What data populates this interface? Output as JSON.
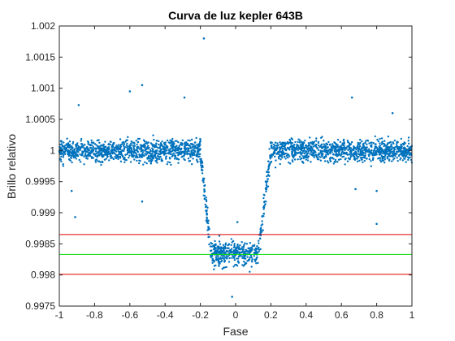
{
  "chart_data": {
    "type": "scatter",
    "title": "Curva de luz kepler 643B",
    "xlabel": "Fase",
    "ylabel": "Brillo relativo",
    "xlim": [
      -1,
      1
    ],
    "ylim": [
      0.9975,
      1.002
    ],
    "x_ticks": [
      -1,
      -0.8,
      -0.6,
      -0.4,
      -0.2,
      0,
      0.2,
      0.4,
      0.6,
      0.8,
      1
    ],
    "x_tick_labels": [
      "-1",
      "-0.8",
      "-0.6",
      "-0.4",
      "-0.2",
      "0",
      "0.2",
      "0.4",
      "0.6",
      "0.8",
      "1"
    ],
    "y_ticks": [
      0.9975,
      0.998,
      0.9985,
      0.999,
      0.9995,
      1,
      1.0005,
      1.001,
      1.0015,
      1.002
    ],
    "y_tick_labels": [
      "0.9975",
      "0.998",
      "0.9985",
      "0.999",
      "0.9995",
      "1",
      "1.0005",
      "1.001",
      "1.0015",
      "1.002"
    ],
    "grid": false,
    "box": true,
    "marker_color": "#0072BD",
    "series": [
      {
        "kind": "scatter",
        "transit_shape": {
          "baseline": 1.0,
          "baseline_scatter": 0.00022,
          "ingress_start": -0.2,
          "ingress_end": -0.14,
          "egress_start": 0.13,
          "egress_end": 0.2,
          "depth_level": 0.99835,
          "bottom_scatter": 0.00025
        },
        "outliers": [
          {
            "x": -0.18,
            "y": 1.0018
          },
          {
            "x": -0.53,
            "y": 1.00105
          },
          {
            "x": -0.6,
            "y": 1.00095
          },
          {
            "x": -0.29,
            "y": 1.00085
          },
          {
            "x": -0.89,
            "y": 1.00073
          },
          {
            "x": 0.66,
            "y": 1.00085
          },
          {
            "x": 0.89,
            "y": 1.0006
          },
          {
            "x": -0.91,
            "y": 0.99893
          },
          {
            "x": -0.93,
            "y": 0.99935
          },
          {
            "x": -0.53,
            "y": 0.99918
          },
          {
            "x": 0.8,
            "y": 0.99882
          },
          {
            "x": 0.8,
            "y": 0.99935
          },
          {
            "x": 0.01,
            "y": 0.99885
          },
          {
            "x": -0.02,
            "y": 0.99765
          },
          {
            "x": 0.68,
            "y": 0.99938
          }
        ]
      }
    ],
    "horizontal_lines": [
      {
        "y": 0.99865,
        "color": "#e00000"
      },
      {
        "y": 0.99833,
        "color": "#00dd00"
      },
      {
        "y": 0.99801,
        "color": "#e00000"
      }
    ]
  }
}
